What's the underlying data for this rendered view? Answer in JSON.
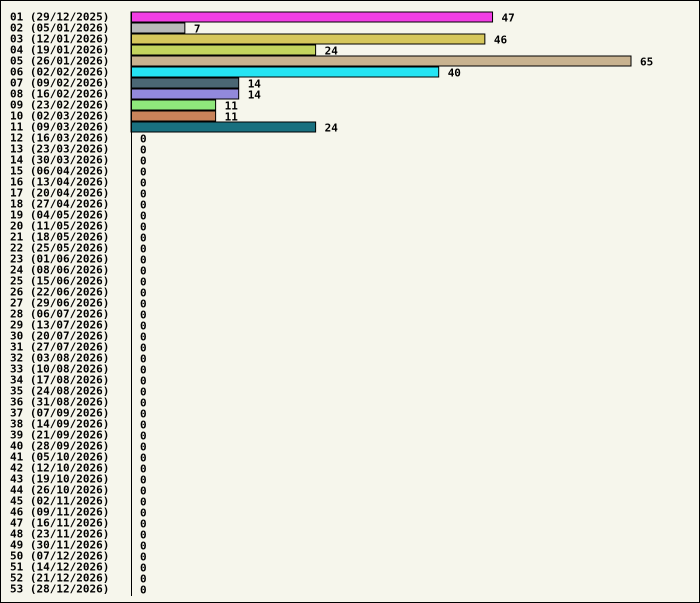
{
  "chart_data": {
    "type": "bar",
    "orientation": "horizontal",
    "title": "",
    "xlabel": "",
    "ylabel": "",
    "xlim": [
      0,
      65
    ],
    "grid": false,
    "legend": "none",
    "categories": [
      "01 (29/12/2025)",
      "02 (05/01/2026)",
      "03 (12/01/2026)",
      "04 (19/01/2026)",
      "05 (26/01/2026)",
      "06 (02/02/2026)",
      "07 (09/02/2026)",
      "08 (16/02/2026)",
      "09 (23/02/2026)",
      "10 (02/03/2026)",
      "11 (09/03/2026)",
      "12 (16/03/2026)",
      "13 (23/03/2026)",
      "14 (30/03/2026)",
      "15 (06/04/2026)",
      "16 (13/04/2026)",
      "17 (20/04/2026)",
      "18 (27/04/2026)",
      "19 (04/05/2026)",
      "20 (11/05/2026)",
      "21 (18/05/2026)",
      "22 (25/05/2026)",
      "23 (01/06/2026)",
      "24 (08/06/2026)",
      "25 (15/06/2026)",
      "26 (22/06/2026)",
      "27 (29/06/2026)",
      "28 (06/07/2026)",
      "29 (13/07/2026)",
      "30 (20/07/2026)",
      "31 (27/07/2026)",
      "32 (03/08/2026)",
      "33 (10/08/2026)",
      "34 (17/08/2026)",
      "35 (24/08/2026)",
      "36 (31/08/2026)",
      "37 (07/09/2026)",
      "38 (14/09/2026)",
      "39 (21/09/2026)",
      "40 (28/09/2026)",
      "41 (05/10/2026)",
      "42 (12/10/2026)",
      "43 (19/10/2026)",
      "44 (26/10/2026)",
      "45 (02/11/2026)",
      "46 (09/11/2026)",
      "47 (16/11/2026)",
      "48 (23/11/2026)",
      "49 (30/11/2026)",
      "50 (07/12/2026)",
      "51 (14/12/2026)",
      "52 (21/12/2026)",
      "53 (28/12/2026)"
    ],
    "values": [
      47,
      7,
      46,
      24,
      65,
      40,
      14,
      14,
      11,
      11,
      24,
      0,
      0,
      0,
      0,
      0,
      0,
      0,
      0,
      0,
      0,
      0,
      0,
      0,
      0,
      0,
      0,
      0,
      0,
      0,
      0,
      0,
      0,
      0,
      0,
      0,
      0,
      0,
      0,
      0,
      0,
      0,
      0,
      0,
      0,
      0,
      0,
      0,
      0,
      0,
      0,
      0,
      0
    ],
    "colors": [
      "#f23ee4",
      "#b8b8b8",
      "#d6c75c",
      "#c3d45e",
      "#c8b28f",
      "#25e4f3",
      "#4b6774",
      "#9289dc",
      "#8fe87c",
      "#c9835a",
      "#19707f"
    ],
    "axis_color": "#000000",
    "background": "#f6f6ec"
  }
}
